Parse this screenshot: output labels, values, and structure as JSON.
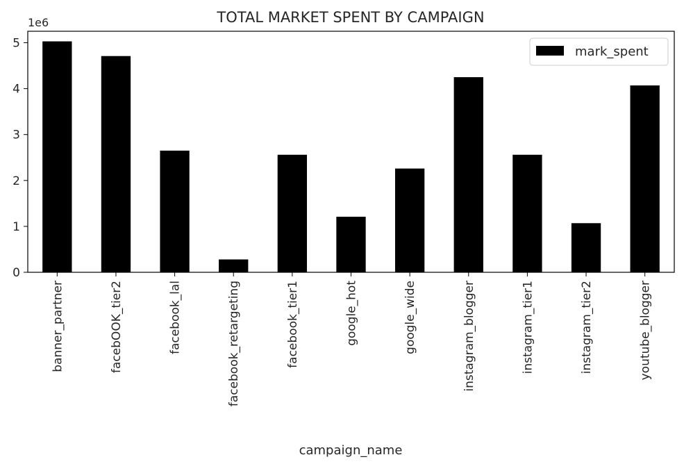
{
  "chart_data": {
    "type": "bar",
    "title": "TOTAL MARKET SPENT BY CAMPAIGN",
    "xlabel": "campaign_name",
    "ylabel": "",
    "y_offset_label": "1e6",
    "ylim": [
      0,
      5.25
    ],
    "yticks": [
      0,
      1,
      2,
      3,
      4,
      5
    ],
    "grid": false,
    "legend_position": "top-right",
    "categories": [
      "banner_partner",
      "facebOOK_tier2",
      "facebook_lal",
      "facebook_retargeting",
      "facebook_tier1",
      "google_hot",
      "google_wide",
      "instagram_blogger",
      "instagram_tier1",
      "instagram_tier2",
      "youtube_blogger"
    ],
    "series": [
      {
        "name": "mark_spent",
        "color": "#000000",
        "values": [
          5.03,
          4.71,
          2.65,
          0.28,
          2.56,
          1.21,
          2.26,
          4.25,
          2.56,
          1.07,
          4.07
        ]
      }
    ]
  }
}
